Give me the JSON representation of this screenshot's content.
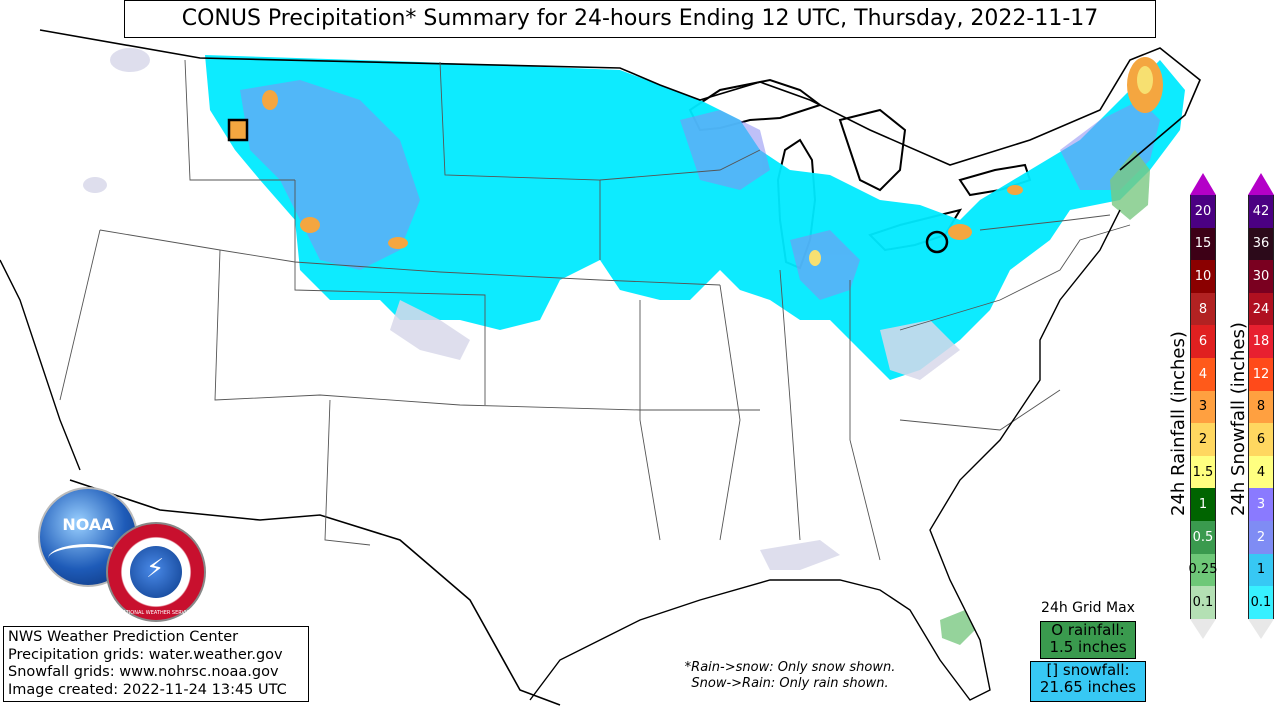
{
  "title": "CONUS Precipitation* Summary for 24-hours Ending 12 UTC, Thursday, 2022-11-17",
  "credits": {
    "line1": "NWS Weather Prediction Center",
    "line2": "Precipitation grids: water.weather.gov",
    "line3": "Snowfall grids: www.nohrsc.noaa.gov",
    "line4": "Image created: 2022-11-24 13:45 UTC"
  },
  "note": {
    "line1": "*Rain->snow: Only snow shown.",
    "line2": "Snow->Rain: Only rain shown."
  },
  "grid_max": {
    "title": "24h Grid Max",
    "rain_line1": "O rainfall:",
    "rain_line2": "1.5 inches",
    "snow_line1": "[] snowfall:",
    "snow_line2": "21.65 inches"
  },
  "rain_scale": {
    "label": "24h Rainfall (inches)",
    "values": [
      "20",
      "15",
      "10",
      "8",
      "6",
      "4",
      "3",
      "2",
      "1.5",
      "1",
      "0.5",
      "0.25",
      "0.1"
    ],
    "colors": [
      "#4b0082",
      "#3d0016",
      "#8b0000",
      "#b22222",
      "#e02020",
      "#ff5a1a",
      "#ffa040",
      "#ffd760",
      "#ffff80",
      "#006400",
      "#3a9a4e",
      "#6ec878",
      "#b4e0b4"
    ]
  },
  "snow_scale": {
    "label": "24h Snowfall (inches)",
    "values": [
      "42",
      "36",
      "30",
      "24",
      "18",
      "12",
      "8",
      "6",
      "4",
      "3",
      "2",
      "1",
      "0.1"
    ],
    "colors": [
      "#4b0082",
      "#2c0a1a",
      "#7a0020",
      "#b01020",
      "#e82030",
      "#ff4a1a",
      "#ffa040",
      "#ffd760",
      "#ffff80",
      "#8a7aff",
      "#7f8cf4",
      "#37c8f4",
      "#37f0ff"
    ]
  },
  "logos": {
    "noaa_text": "NOAA",
    "nws_text": "NATIONAL WEATHER SERVICE"
  },
  "colors": {
    "snow_cyan": "#00eaff",
    "snow_blue": "#8a8cf2",
    "trace_grey": "#d8d8ea",
    "rain_green": "#7ac882",
    "hot_orange": "#f4a640",
    "hot_yellow": "#f7e071"
  }
}
